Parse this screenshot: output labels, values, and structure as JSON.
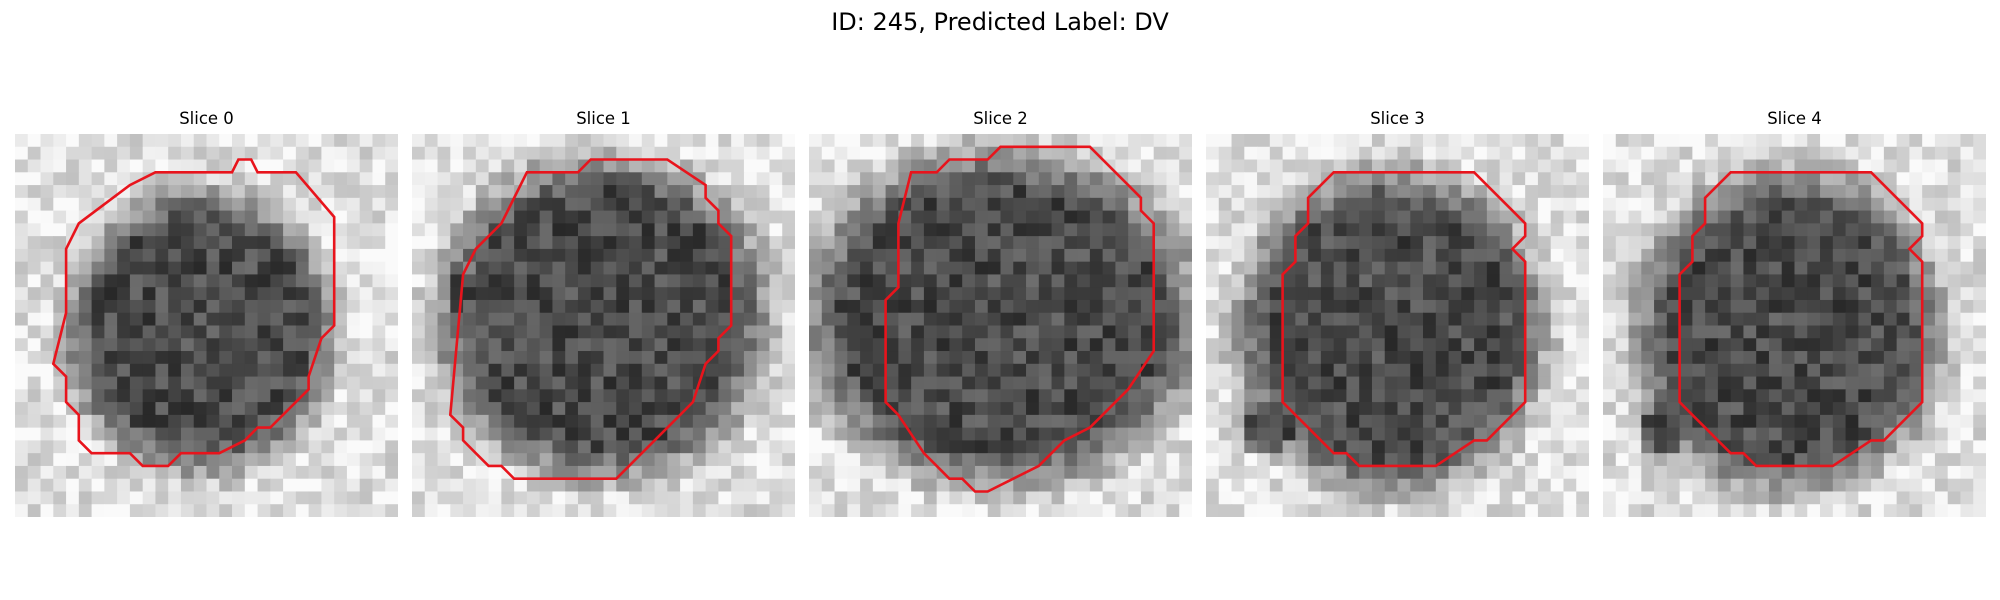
{
  "figure": {
    "title": "ID: 245, Predicted Label: DV"
  },
  "slices": [
    {
      "label": "Slice 0"
    },
    {
      "label": "Slice 1"
    },
    {
      "label": "Slice 2"
    },
    {
      "label": "Slice 3"
    },
    {
      "label": "Slice 4"
    }
  ],
  "contour_color": "#e8141c"
}
